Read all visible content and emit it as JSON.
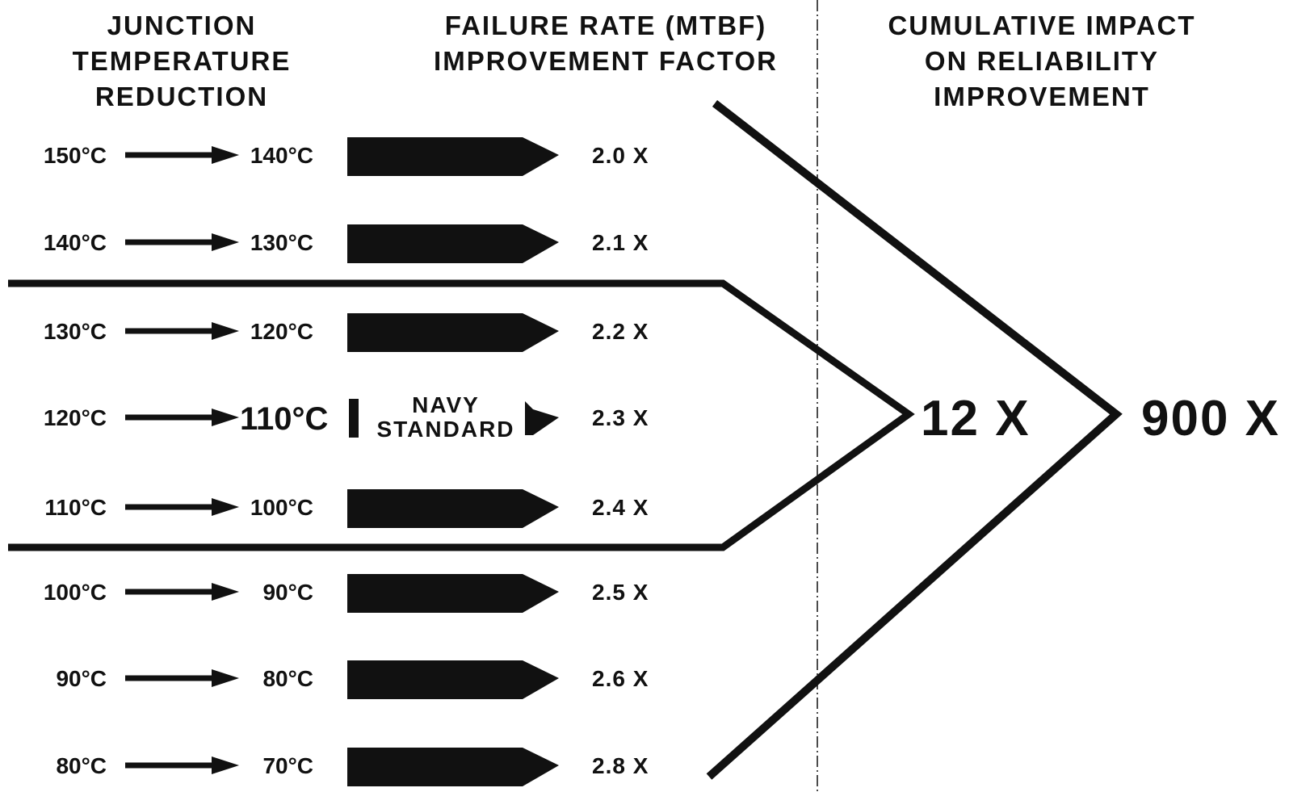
{
  "headers": {
    "junction": [
      "JUNCTION",
      "TEMPERATURE",
      "REDUCTION"
    ],
    "failure": [
      "FAILURE RATE (MTBF)",
      "IMPROVEMENT FACTOR"
    ],
    "cumulative": [
      "CUMULATIVE IMPACT",
      "ON RELIABILITY",
      "IMPROVEMENT"
    ]
  },
  "rows": [
    {
      "from": "150°C",
      "to": "140°C",
      "factor": "2.0 X"
    },
    {
      "from": "140°C",
      "to": "130°C",
      "factor": "2.1 X"
    },
    {
      "from": "130°C",
      "to": "120°C",
      "factor": "2.2 X"
    },
    {
      "from": "120°C",
      "to": "110°C",
      "factor": "2.3 X",
      "label": [
        "NAVY",
        "STANDARD"
      ]
    },
    {
      "from": "110°C",
      "to": "100°C",
      "factor": "2.4 X"
    },
    {
      "from": "100°C",
      "to": "90°C",
      "factor": "2.5 X"
    },
    {
      "from": "90°C",
      "to": "80°C",
      "factor": "2.6 X"
    },
    {
      "from": "80°C",
      "to": "70°C",
      "factor": "2.8 X"
    }
  ],
  "results": {
    "group": "12 X",
    "total": "900 X"
  },
  "colors": {
    "ink": "#111111",
    "background": "#ffffff"
  }
}
